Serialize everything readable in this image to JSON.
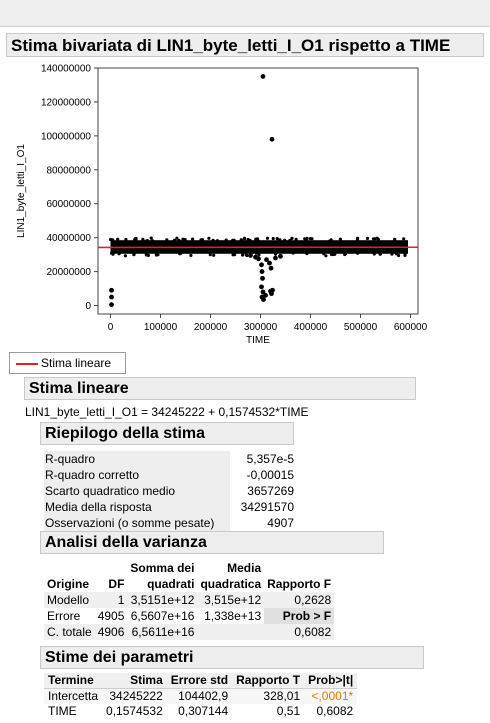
{
  "report": {
    "title": "Stima bivariata di LIN1_byte_letti_I_O1 rispetto a TIME"
  },
  "legend": {
    "label": "Stima lineare",
    "color": "#d62728"
  },
  "fit": {
    "header": "Stima lineare",
    "equation": "LIN1_byte_letti_I_O1 = 34245222 + 0,1574532*TIME"
  },
  "summary": {
    "header": "Riepilogo della stima",
    "rows": [
      {
        "label": "R-quadro",
        "value": "5,357e-5"
      },
      {
        "label": "R-quadro corretto",
        "value": "-0,00015"
      },
      {
        "label": "Scarto quadratico medio",
        "value": "3657269"
      },
      {
        "label": "Media della risposta",
        "value": "34291570"
      },
      {
        "label": "Osservazioni (o somme pesate)",
        "value": "4907"
      }
    ]
  },
  "anova": {
    "header": "Analisi della varianza",
    "col_origine": "Origine",
    "col_df": "DF",
    "col_ss_1": "Somma dei",
    "col_ss_2": "quadrati",
    "col_ms_1": "Media",
    "col_ms_2": "quadratica",
    "col_f": "Rapporto F",
    "rows": [
      {
        "origine": "Modello",
        "df": "1",
        "ss": "3,5151e+12",
        "ms": "3,515e+12",
        "f": "0,2628"
      },
      {
        "origine": "Errore",
        "df": "4905",
        "ss": "6,5607e+16",
        "ms": "1,338e+13",
        "f": "Prob > F"
      },
      {
        "origine": "C. totale",
        "df": "4906",
        "ss": "6,5611e+16",
        "ms": "",
        "f": "0,6082"
      }
    ]
  },
  "params": {
    "header": "Stime dei parametri",
    "col_term": "Termine",
    "col_est": "Stima",
    "col_se": "Errore std",
    "col_t": "Rapporto T",
    "col_p": "Prob>|t|",
    "rows": [
      {
        "term": "Intercetta",
        "est": "34245222",
        "se": "104402,9",
        "t": "328,01",
        "p": "<,0001*"
      },
      {
        "term": "TIME",
        "est": "0,1574532",
        "se": "0,307144",
        "t": "0,51",
        "p": "0,6082"
      }
    ]
  },
  "chart_data": {
    "type": "scatter",
    "xlabel": "TIME",
    "ylabel": "LIN1_byte_letti_I_O1",
    "xlim": [
      -25000,
      615000
    ],
    "ylim": [
      -5000000,
      140000000
    ],
    "xticks": [
      0,
      100000,
      200000,
      300000,
      400000,
      500000,
      600000
    ],
    "xtick_labels": [
      "0",
      "100000",
      "200000",
      "300000",
      "400000",
      "500000",
      "600000"
    ],
    "yticks": [
      0,
      20000000,
      40000000,
      60000000,
      80000000,
      100000000,
      120000000,
      140000000
    ],
    "ytick_labels": [
      "0",
      "20000000",
      "40000000",
      "60000000",
      "80000000",
      "100000000",
      "120000000",
      "140000000"
    ],
    "band": {
      "x_start": 0,
      "x_end": 595000,
      "y_low": 30500000,
      "y_high": 38500000
    },
    "fit_line": {
      "intercept": 34245222,
      "slope": 0.1574532,
      "color": "#d62728"
    },
    "outliers": [
      {
        "x": 305000,
        "y": 135000000
      },
      {
        "x": 323000,
        "y": 98000000
      },
      {
        "x": 2000,
        "y": 9000000
      },
      {
        "x": 2000,
        "y": 5000000
      },
      {
        "x": 2000,
        "y": 500000
      },
      {
        "x": 302000,
        "y": 24000000
      },
      {
        "x": 303000,
        "y": 20000000
      },
      {
        "x": 304000,
        "y": 16000000
      },
      {
        "x": 302000,
        "y": 11000000
      },
      {
        "x": 305000,
        "y": 8000000
      },
      {
        "x": 303000,
        "y": 5000000
      },
      {
        "x": 306000,
        "y": 3500000
      },
      {
        "x": 310000,
        "y": 6000000
      },
      {
        "x": 320000,
        "y": 8500000
      },
      {
        "x": 322000,
        "y": 7000000
      },
      {
        "x": 324000,
        "y": 9000000
      },
      {
        "x": 318000,
        "y": 25000000
      },
      {
        "x": 321000,
        "y": 22000000
      },
      {
        "x": 312000,
        "y": 27000000
      },
      {
        "x": 290000,
        "y": 28500000
      },
      {
        "x": 296000,
        "y": 27500000
      },
      {
        "x": 330000,
        "y": 28000000
      },
      {
        "x": 340000,
        "y": 29000000
      },
      {
        "x": 280000,
        "y": 29500000
      }
    ]
  }
}
